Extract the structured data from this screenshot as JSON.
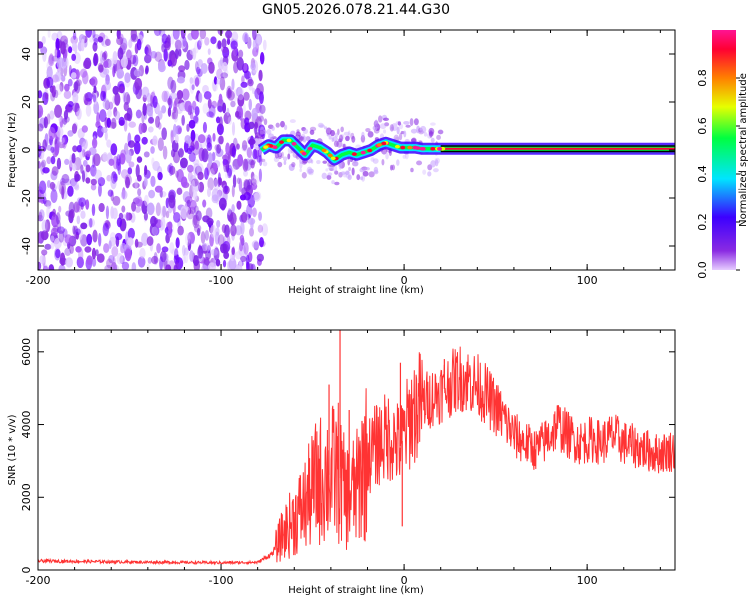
{
  "figure": {
    "title": "GN05.2026.078.21.44.G30"
  },
  "chart_data": [
    {
      "type": "heatmap",
      "title": "GN05.2026.078.21.44.G30",
      "xlabel": "Height of straight line (km)",
      "ylabel": "Frequency (Hz)",
      "xlim": [
        -200,
        148
      ],
      "ylim": [
        -50,
        50
      ],
      "xticks": [
        -200,
        -100,
        0,
        100
      ],
      "xtick_labels": [
        "-200",
        "-100",
        "0",
        "100"
      ],
      "yticks": [
        -40,
        -20,
        0,
        20,
        40
      ],
      "ytick_labels": [
        "-40",
        "-20",
        "0",
        "20",
        "40"
      ],
      "noise_region_x": [
        -200,
        -76
      ],
      "ridge": {
        "x": [
          -78,
          -74,
          -70,
          -66,
          -62,
          -58,
          -54,
          -50,
          -46,
          -42,
          -38,
          -34,
          -30,
          -26,
          -22,
          -18,
          -14,
          -10,
          -6,
          -2,
          2,
          6,
          10,
          20,
          40,
          60,
          80,
          100,
          120,
          148
        ],
        "y": [
          0,
          2,
          1,
          4,
          4,
          1,
          -2,
          2,
          1,
          -1,
          -4,
          -2,
          -1,
          -2,
          -1,
          0,
          2,
          3,
          2,
          1,
          1,
          1,
          0.5,
          0.5,
          0.5,
          0.5,
          0.5,
          0.5,
          0.5,
          0.5
        ]
      },
      "colorbar": {
        "label": "Normalized spectral amplitude",
        "range": [
          0,
          1
        ],
        "ticks": [
          0.0,
          0.2,
          0.4,
          0.6,
          0.8
        ],
        "tick_labels": [
          "0.0",
          "0.2",
          "0.4",
          "0.6",
          "0.8"
        ],
        "colors": [
          "#e6ccff",
          "#8a2be2",
          "#3c00ff",
          "#00e5ff",
          "#00ff40",
          "#e6ff00",
          "#ff8000",
          "#ff0033",
          "#ff1493"
        ]
      }
    },
    {
      "type": "line",
      "xlabel": "Height of straight line (km)",
      "ylabel": "SNR (10 * v/v)",
      "xlim": [
        -200,
        148
      ],
      "ylim": [
        0,
        6600
      ],
      "xticks": [
        -200,
        -100,
        0,
        100
      ],
      "xtick_labels": [
        "-200",
        "-100",
        "0",
        "100"
      ],
      "yticks": [
        0,
        2000,
        4000,
        6000
      ],
      "ytick_labels": [
        "0",
        "2000",
        "4000",
        "6000"
      ],
      "color": "#ff3333",
      "envelope": {
        "x": [
          -200,
          -150,
          -100,
          -80,
          -72,
          -66,
          -60,
          -54,
          -48,
          -42,
          -36,
          -32,
          -26,
          -20,
          -14,
          -8,
          -2,
          4,
          10,
          20,
          30,
          36,
          42,
          48,
          54,
          60,
          66,
          72,
          78,
          84,
          90,
          96,
          102,
          108,
          114,
          120,
          126,
          132,
          138,
          148
        ],
        "y": [
          250,
          220,
          200,
          210,
          450,
          1000,
          1400,
          1800,
          2400,
          2600,
          2700,
          2000,
          2200,
          3100,
          3500,
          3700,
          3400,
          4300,
          4600,
          4900,
          5300,
          5200,
          5000,
          4600,
          4200,
          3700,
          3500,
          3300,
          3600,
          4000,
          3700,
          3500,
          3600,
          3500,
          3700,
          3500,
          3400,
          3300,
          3200,
          3300
        ]
      },
      "spikes": [
        {
          "x": -35,
          "y": 6600
        },
        {
          "x": -41,
          "y": 5100
        },
        {
          "x": -30,
          "y": 4400
        },
        {
          "x": -2,
          "y": 5700
        },
        {
          "x": 22,
          "y": 5800
        },
        {
          "x": -23,
          "y": 4100
        },
        {
          "x": -1,
          "y": 1200
        }
      ],
      "noise_amplitude": 0.18
    }
  ]
}
